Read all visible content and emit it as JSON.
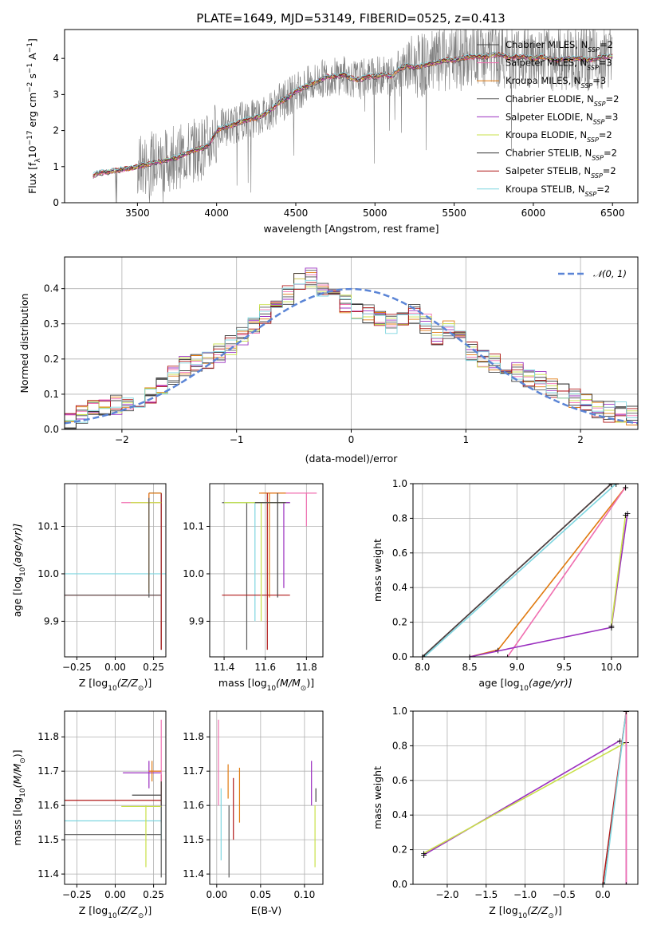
{
  "figure": {
    "title": "PLATE=1649, MJD=53149, FIBERID=0525, z=0.413"
  },
  "models": [
    {
      "label": "Chabrier MILES, N",
      "sub": "SSP",
      "suffix": "=2",
      "color": "#444444"
    },
    {
      "label": "Salpeter MILES, N",
      "sub": "SSP",
      "suffix": "=3",
      "color": "#f06fb0"
    },
    {
      "label": "Kroupa MILES, N",
      "sub": "SSP",
      "suffix": "=3",
      "color": "#e07a10"
    },
    {
      "label": "Chabrier ELODIE, N",
      "sub": "SSP",
      "suffix": "=2",
      "color": "#5a5a5a"
    },
    {
      "label": "Salpeter ELODIE, N",
      "sub": "SSP",
      "suffix": "=3",
      "color": "#9b30c0"
    },
    {
      "label": "Kroupa ELODIE, N",
      "sub": "SSP",
      "suffix": "=2",
      "color": "#c8e048"
    },
    {
      "label": "Chabrier STELIB, N",
      "sub": "SSP",
      "suffix": "=2",
      "color": "#333333"
    },
    {
      "label": "Salpeter STELIB, N",
      "sub": "SSP",
      "suffix": "=2",
      "color": "#b01818"
    },
    {
      "label": "Kroupa STELIB, N",
      "sub": "SSP",
      "suffix": "=2",
      "color": "#7fd6e0"
    }
  ],
  "chart_data": [
    {
      "id": "spectrum",
      "type": "line",
      "xlabel": "wavelength [Angstrom, rest frame]",
      "ylabel": "Flux [f",
      "ylabel_sub": "λ",
      "ylabel_rest": "10",
      "ylabel_exp": "−17",
      "ylabel_tail": " erg cm",
      "ylabel_exp2": "−2",
      "ylabel_tail2": " s",
      "ylabel_exp3": "−1",
      "ylabel_tail3": " A",
      "ylabel_exp4": "−1",
      "ylabel_end": "]",
      "xlim": [
        3040,
        6660
      ],
      "ylim": [
        0,
        4.8
      ],
      "xticks": [
        3500,
        4000,
        4500,
        5000,
        5500,
        6000,
        6500
      ],
      "yticks": [
        0,
        1,
        2,
        3,
        4
      ],
      "data_color": "#808080",
      "model_x": [
        3220,
        3250,
        3300,
        3350,
        3400,
        3450,
        3500,
        3550,
        3600,
        3650,
        3700,
        3750,
        3800,
        3850,
        3900,
        3950,
        4000,
        4050,
        4100,
        4150,
        4200,
        4250,
        4300,
        4350,
        4400,
        4450,
        4500,
        4550,
        4600,
        4650,
        4700,
        4750,
        4800,
        4850,
        4900,
        4950,
        5000,
        5050,
        5100,
        5150,
        5200,
        5250,
        5300,
        5350,
        5400,
        5450,
        5500,
        5550,
        5600,
        5650,
        5700,
        5750,
        5800,
        5850,
        5900,
        5950,
        6000,
        6050,
        6100,
        6150,
        6200,
        6250,
        6300,
        6350,
        6400,
        6450,
        6500
      ],
      "model_y": [
        0.75,
        0.82,
        0.85,
        0.88,
        0.92,
        0.95,
        1.0,
        1.05,
        1.1,
        1.15,
        1.2,
        1.25,
        1.35,
        1.45,
        1.5,
        1.6,
        2.0,
        2.1,
        2.15,
        2.25,
        2.3,
        2.35,
        2.45,
        2.6,
        2.8,
        2.9,
        3.1,
        3.2,
        3.3,
        3.4,
        3.5,
        3.5,
        3.55,
        3.45,
        3.4,
        3.5,
        3.5,
        3.55,
        3.5,
        3.7,
        3.8,
        3.75,
        3.8,
        3.85,
        3.9,
        3.95,
        3.95,
        4.0,
        4.05,
        4.05,
        4.05,
        4.1,
        4.1,
        4.0,
        4.05,
        4.05,
        4.0,
        4.05,
        4.0,
        3.95,
        4.0,
        4.0,
        4.0,
        3.95,
        4.0,
        4.05,
        4.05
      ]
    },
    {
      "id": "residuals",
      "type": "line",
      "xlabel": "(data-model)/error",
      "ylabel": "Normed distribution",
      "xlim": [
        -2.5,
        2.5
      ],
      "ylim": [
        0,
        0.49
      ],
      "xticks": [
        -2,
        -1,
        0,
        1,
        2
      ],
      "yticks": [
        0.0,
        0.1,
        0.2,
        0.3,
        0.4
      ],
      "legend": "𝒩(0, 1)",
      "legend_position": "top-right",
      "gauss_color": "#5b85d6",
      "hist_bins": [
        -2.5,
        2.5,
        50
      ],
      "hist_center": [
        0.02,
        0.04,
        0.06,
        0.06,
        0.07,
        0.08,
        0.09,
        0.1,
        0.12,
        0.15,
        0.18,
        0.19,
        0.2,
        0.22,
        0.24,
        0.26,
        0.3,
        0.33,
        0.36,
        0.38,
        0.42,
        0.43,
        0.4,
        0.38,
        0.36,
        0.34,
        0.33,
        0.32,
        0.3,
        0.32,
        0.33,
        0.3,
        0.27,
        0.28,
        0.26,
        0.22,
        0.2,
        0.19,
        0.17,
        0.16,
        0.15,
        0.14,
        0.12,
        0.1,
        0.09,
        0.08,
        0.06,
        0.05,
        0.05,
        0.04
      ]
    },
    {
      "id": "age-vs-Z",
      "type": "scatter",
      "xlabel": "Z [log",
      "xlabel_sub": "10",
      "xlabel_tail": "(Z/Z",
      "xlabel_sub2": "⊙",
      "xlabel_end": ")]",
      "ylabel": "age  [log",
      "ylabel_sub": "10",
      "ylabel_tail": "(age/yr)]",
      "xlim": [
        -0.33,
        0.33
      ],
      "ylim": [
        9.825,
        10.19
      ],
      "xticks": [
        -0.25,
        0.0,
        0.25
      ],
      "xtick_labels": [
        "−0.25",
        "0.00",
        "0.25"
      ],
      "yticks": [
        9.9,
        10.0,
        10.1
      ],
      "yticks_labels": [
        "9.9",
        "10.0",
        "10.1"
      ]
    },
    {
      "id": "age-vs-mass",
      "type": "scatter",
      "xlabel": "mass [log",
      "xlabel_sub": "10",
      "xlabel_tail": "(M/M",
      "xlabel_sub2": "⊙",
      "xlabel_end": ")]",
      "xlim": [
        11.33,
        11.88
      ],
      "ylim": [
        9.825,
        10.19
      ],
      "xticks": [
        11.4,
        11.6,
        11.8
      ],
      "xtick_labels": [
        "11.4",
        "11.6",
        "11.8"
      ],
      "yticks": [
        9.9,
        10.0,
        10.1
      ],
      "yticks_labels": [
        "9.9",
        "10.0",
        "10.1"
      ]
    },
    {
      "id": "mass-weight-vs-age",
      "type": "line",
      "xlabel": "age  [log",
      "xlabel_sub": "10",
      "xlabel_tail": "(age/yr)]",
      "ylabel": "mass weight",
      "xlim": [
        7.9,
        10.28
      ],
      "ylim": [
        0.0,
        1.0
      ],
      "xticks": [
        8.0,
        8.5,
        9.0,
        9.5,
        10.0
      ],
      "xtick_labels": [
        "8.0",
        "8.5",
        "9.0",
        "9.5",
        "10.0"
      ],
      "yticks": [
        0.0,
        0.2,
        0.4,
        0.6,
        0.8,
        1.0
      ],
      "yticks_labels": [
        "0.0",
        "0.2",
        "0.4",
        "0.6",
        "0.8",
        "1.0"
      ]
    },
    {
      "id": "mass-vs-Z",
      "type": "scatter",
      "xlabel": "Z [log",
      "xlabel_sub": "10",
      "xlabel_tail": "(Z/Z",
      "xlabel_sub2": "⊙",
      "xlabel_end": ")]",
      "ylabel": "mass [log",
      "ylabel_sub": "10",
      "ylabel_tail": "(M/M",
      "ylabel_sub2": "⊙",
      "ylabel_end": ")]",
      "xlim": [
        -0.33,
        0.33
      ],
      "ylim": [
        11.37,
        11.875
      ],
      "xticks": [
        -0.25,
        0.0,
        0.25
      ],
      "xtick_labels": [
        "−0.25",
        "0.00",
        "0.25"
      ],
      "yticks": [
        11.4,
        11.5,
        11.6,
        11.7,
        11.8
      ],
      "yticks_labels": [
        "11.4",
        "11.5",
        "11.6",
        "11.7",
        "11.8"
      ]
    },
    {
      "id": "mass-vs-ebv",
      "type": "scatter",
      "xlabel": "E(B-V)",
      "xlim": [
        -0.008,
        0.121
      ],
      "ylim": [
        11.37,
        11.875
      ],
      "xticks": [
        0.0,
        0.05,
        0.1
      ],
      "xtick_labels": [
        "0.00",
        "0.05",
        "0.10"
      ],
      "yticks": [
        11.4,
        11.5,
        11.6,
        11.7,
        11.8
      ],
      "yticks_labels": [
        "11.4",
        "11.5",
        "11.6",
        "11.7",
        "11.8"
      ]
    },
    {
      "id": "mass-weight-vs-Z",
      "type": "line",
      "xlabel": "Z [log",
      "xlabel_sub": "10",
      "xlabel_tail": "(Z/Z",
      "xlabel_sub2": "⊙",
      "xlabel_end": ")]",
      "ylabel": "mass weight",
      "xlim": [
        -2.44,
        0.45
      ],
      "ylim": [
        0.0,
        1.0
      ],
      "xticks": [
        -2.0,
        -1.5,
        -1.0,
        -0.5,
        0.0
      ],
      "xtick_labels": [
        "−2.0",
        "−1.5",
        "−1.0",
        "−0.5",
        "0.0"
      ],
      "yticks": [
        0.0,
        0.2,
        0.4,
        0.6,
        0.8,
        1.0
      ],
      "yticks_labels": [
        "0.0",
        "0.2",
        "0.4",
        "0.6",
        "0.8",
        "1.0"
      ]
    }
  ]
}
